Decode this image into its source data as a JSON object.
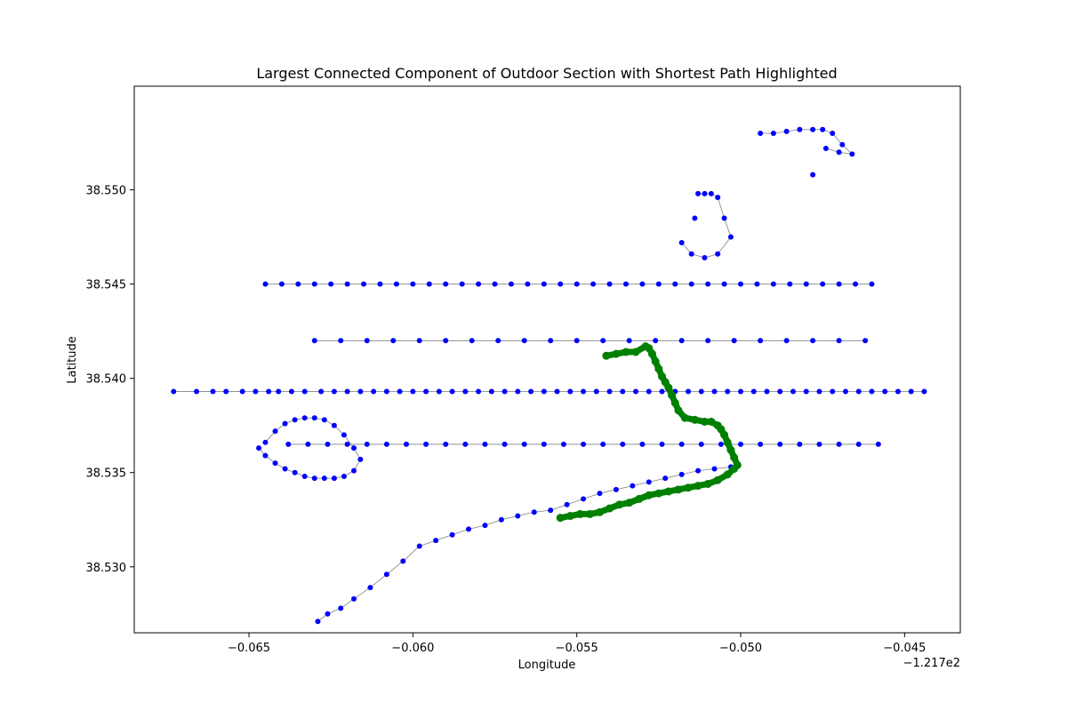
{
  "chart_data": {
    "type": "scatter",
    "title": "Largest Connected Component of Outdoor Section with Shortest Path Highlighted",
    "xlabel": "Longitude",
    "ylabel": "Latitude",
    "x_offset_label": "−1.217e2",
    "xlim": [
      -0.0685,
      -0.0433
    ],
    "ylim": [
      38.5265,
      38.5555
    ],
    "xticks": [
      -0.065,
      -0.06,
      -0.055,
      -0.05,
      -0.045
    ],
    "xtick_labels": [
      "−0.065",
      "−0.060",
      "−0.055",
      "−0.050",
      "−0.045"
    ],
    "yticks": [
      38.53,
      38.535,
      38.54,
      38.545,
      38.55
    ],
    "ytick_labels": [
      "38.530",
      "38.535",
      "38.540",
      "38.545",
      "38.550"
    ],
    "grid": false,
    "colors": {
      "nodes": "#0000ff",
      "path": "#008000",
      "edges": "#808080"
    },
    "series": [
      {
        "color": "#0000ff",
        "marker": "circle",
        "x": [
          -0.0673,
          -0.0666,
          -0.0661,
          -0.0657,
          -0.0652,
          -0.0648,
          -0.0644,
          -0.0641,
          -0.0637,
          -0.0633,
          -0.0628,
          -0.0624,
          -0.062,
          -0.0616,
          -0.0612,
          -0.0608,
          -0.0604,
          -0.06,
          -0.0596,
          -0.0592,
          -0.0588,
          -0.0584,
          -0.058,
          -0.0576,
          -0.0572,
          -0.0568,
          -0.0564,
          -0.056,
          -0.0556,
          -0.0552,
          -0.0548,
          -0.0544,
          -0.054,
          -0.0536,
          -0.0532,
          -0.0528,
          -0.0524,
          -0.052,
          -0.0516,
          -0.0512,
          -0.0508,
          -0.0504,
          -0.05,
          -0.0496,
          -0.0492,
          -0.0488,
          -0.0484,
          -0.048,
          -0.0476,
          -0.0472,
          -0.0468,
          -0.0464,
          -0.046,
          -0.0456,
          -0.0452,
          -0.0448,
          -0.0444,
          -0.0645,
          -0.064,
          -0.0635,
          -0.063,
          -0.0625,
          -0.062,
          -0.0615,
          -0.061,
          -0.0605,
          -0.06,
          -0.0595,
          -0.059,
          -0.0585,
          -0.058,
          -0.0575,
          -0.057,
          -0.0565,
          -0.056,
          -0.0555,
          -0.055,
          -0.0545,
          -0.054,
          -0.0535,
          -0.053,
          -0.0525,
          -0.052,
          -0.0515,
          -0.051,
          -0.0505,
          -0.05,
          -0.0495,
          -0.049,
          -0.0485,
          -0.048,
          -0.0475,
          -0.047,
          -0.0465,
          -0.046,
          -0.0638,
          -0.0632,
          -0.0626,
          -0.062,
          -0.0614,
          -0.0608,
          -0.0602,
          -0.0596,
          -0.059,
          -0.0584,
          -0.0578,
          -0.0572,
          -0.0566,
          -0.056,
          -0.0554,
          -0.0548,
          -0.0542,
          -0.0536,
          -0.053,
          -0.0524,
          -0.0518,
          -0.0512,
          -0.0506,
          -0.05,
          -0.0494,
          -0.0488,
          -0.0482,
          -0.0476,
          -0.047,
          -0.0464,
          -0.0458,
          -0.063,
          -0.0622,
          -0.0614,
          -0.0606,
          -0.0598,
          -0.059,
          -0.0582,
          -0.0574,
          -0.0566,
          -0.0558,
          -0.055,
          -0.0542,
          -0.0534,
          -0.0526,
          -0.0518,
          -0.051,
          -0.0502,
          -0.0494,
          -0.0486,
          -0.0478,
          -0.047,
          -0.0462,
          -0.0629,
          -0.0626,
          -0.0622,
          -0.0618,
          -0.0613,
          -0.0608,
          -0.0603,
          -0.0598,
          -0.0593,
          -0.0588,
          -0.0583,
          -0.0578,
          -0.0573,
          -0.0568,
          -0.0563,
          -0.0558,
          -0.0553,
          -0.0548,
          -0.0543,
          -0.0538,
          -0.0533,
          -0.0528,
          -0.0523,
          -0.0518,
          -0.0513,
          -0.0508,
          -0.0503,
          -0.0645,
          -0.0642,
          -0.0639,
          -0.0636,
          -0.0633,
          -0.063,
          -0.0627,
          -0.0624,
          -0.0621,
          -0.0618,
          -0.0616,
          -0.0618,
          -0.0621,
          -0.0624,
          -0.0627,
          -0.063,
          -0.0633,
          -0.0636,
          -0.0639,
          -0.0642,
          -0.0645,
          -0.0647,
          -0.0513,
          -0.0511,
          -0.0509,
          -0.0507,
          -0.0505,
          -0.0503,
          -0.0507,
          -0.0511,
          -0.0515,
          -0.0518,
          -0.0514,
          -0.0494,
          -0.049,
          -0.0486,
          -0.0482,
          -0.0478,
          -0.0475,
          -0.0472,
          -0.0469,
          -0.0466,
          -0.047,
          -0.0474,
          -0.0478
        ],
        "y": [
          38.5393,
          38.5393,
          38.5393,
          38.5393,
          38.5393,
          38.5393,
          38.5393,
          38.5393,
          38.5393,
          38.5393,
          38.5393,
          38.5393,
          38.5393,
          38.5393,
          38.5393,
          38.5393,
          38.5393,
          38.5393,
          38.5393,
          38.5393,
          38.5393,
          38.5393,
          38.5393,
          38.5393,
          38.5393,
          38.5393,
          38.5393,
          38.5393,
          38.5393,
          38.5393,
          38.5393,
          38.5393,
          38.5393,
          38.5393,
          38.5393,
          38.5393,
          38.5393,
          38.5393,
          38.5393,
          38.5393,
          38.5393,
          38.5393,
          38.5393,
          38.5393,
          38.5393,
          38.5393,
          38.5393,
          38.5393,
          38.5393,
          38.5393,
          38.5393,
          38.5393,
          38.5393,
          38.5393,
          38.5393,
          38.5393,
          38.5393,
          38.545,
          38.545,
          38.545,
          38.545,
          38.545,
          38.545,
          38.545,
          38.545,
          38.545,
          38.545,
          38.545,
          38.545,
          38.545,
          38.545,
          38.545,
          38.545,
          38.545,
          38.545,
          38.545,
          38.545,
          38.545,
          38.545,
          38.545,
          38.545,
          38.545,
          38.545,
          38.545,
          38.545,
          38.545,
          38.545,
          38.545,
          38.545,
          38.545,
          38.545,
          38.545,
          38.545,
          38.545,
          38.545,
          38.5365,
          38.5365,
          38.5365,
          38.5365,
          38.5365,
          38.5365,
          38.5365,
          38.5365,
          38.5365,
          38.5365,
          38.5365,
          38.5365,
          38.5365,
          38.5365,
          38.5365,
          38.5365,
          38.5365,
          38.5365,
          38.5365,
          38.5365,
          38.5365,
          38.5365,
          38.5365,
          38.5365,
          38.5365,
          38.5365,
          38.5365,
          38.5365,
          38.5365,
          38.5365,
          38.5365,
          38.542,
          38.542,
          38.542,
          38.542,
          38.542,
          38.542,
          38.542,
          38.542,
          38.542,
          38.542,
          38.542,
          38.542,
          38.542,
          38.542,
          38.542,
          38.542,
          38.542,
          38.542,
          38.542,
          38.542,
          38.542,
          38.542,
          38.5271,
          38.5275,
          38.5278,
          38.5283,
          38.5289,
          38.5296,
          38.5303,
          38.5311,
          38.5314,
          38.5317,
          38.532,
          38.5322,
          38.5325,
          38.5327,
          38.5329,
          38.533,
          38.5333,
          38.5336,
          38.5339,
          38.5341,
          38.5343,
          38.5345,
          38.5347,
          38.5349,
          38.5351,
          38.5352,
          38.5353,
          38.5366,
          38.5372,
          38.5376,
          38.5378,
          38.5379,
          38.5379,
          38.5378,
          38.5375,
          38.537,
          38.5363,
          38.5357,
          38.5351,
          38.5348,
          38.5347,
          38.5347,
          38.5347,
          38.5348,
          38.535,
          38.5352,
          38.5355,
          38.5359,
          38.5363,
          38.5498,
          38.5498,
          38.5498,
          38.5496,
          38.5485,
          38.5475,
          38.5466,
          38.5464,
          38.5466,
          38.5472,
          38.5485,
          38.553,
          38.553,
          38.5531,
          38.5532,
          38.5532,
          38.5532,
          38.553,
          38.5524,
          38.5519,
          38.552,
          38.5522,
          38.5508
        ]
      },
      {
        "name": "",
        "color": "#008000",
        "marker": "circle",
        "x": [
          -0.0555,
          -0.0552,
          -0.0549,
          -0.0546,
          -0.0543,
          -0.054,
          -0.0537,
          -0.0534,
          -0.0531,
          -0.0528,
          -0.0525,
          -0.0522,
          -0.0519,
          -0.0516,
          -0.0513,
          -0.051,
          -0.0507,
          -0.0504,
          -0.0502,
          -0.0501,
          -0.0502,
          -0.0503,
          -0.0504,
          -0.0505,
          -0.0506,
          -0.0507,
          -0.0509,
          -0.0511,
          -0.0514,
          -0.0517,
          -0.0519,
          -0.052,
          -0.0521,
          -0.0522,
          -0.0523,
          -0.0524,
          -0.0525,
          -0.0526,
          -0.0527,
          -0.0528,
          -0.0529,
          -0.0532,
          -0.0535,
          -0.0538,
          -0.0541
        ],
        "y": [
          38.5326,
          38.5327,
          38.5328,
          38.5328,
          38.5329,
          38.5331,
          38.5333,
          38.5334,
          38.5336,
          38.5338,
          38.5339,
          38.534,
          38.5341,
          38.5342,
          38.5343,
          38.5344,
          38.5346,
          38.5349,
          38.5352,
          38.5354,
          38.5358,
          38.5362,
          38.5366,
          38.537,
          38.5373,
          38.5375,
          38.5377,
          38.5377,
          38.5378,
          38.5379,
          38.5383,
          38.5387,
          38.5391,
          38.5395,
          38.5398,
          38.5401,
          38.5405,
          38.5409,
          38.5413,
          38.5416,
          38.5417,
          38.5414,
          38.5414,
          38.5413,
          38.5412
        ]
      }
    ]
  }
}
